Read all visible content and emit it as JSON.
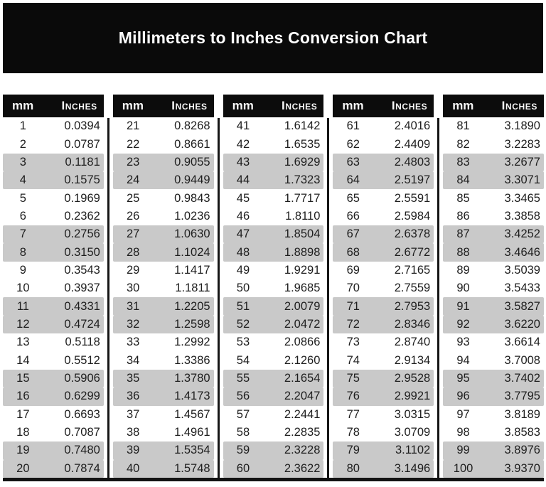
{
  "title": "Millimeters to Inches Conversion Chart",
  "colors": {
    "banner_bg": "#0a0a0a",
    "header_bg": "#0c0c0c",
    "stripe_gray": "#c9c9c9",
    "rule_black": "#151515",
    "body_text": "#1e1e1e",
    "header_text": "#f7f7f7"
  },
  "table": {
    "headers": {
      "mm": "mm",
      "inches": "Inches"
    },
    "groups": [
      {
        "rows": [
          [
            "1",
            "0.0394"
          ],
          [
            "2",
            "0.0787"
          ],
          [
            "3",
            "0.1181"
          ],
          [
            "4",
            "0.1575"
          ],
          [
            "5",
            "0.1969"
          ],
          [
            "6",
            "0.2362"
          ],
          [
            "7",
            "0.2756"
          ],
          [
            "8",
            "0.3150"
          ],
          [
            "9",
            "0.3543"
          ],
          [
            "10",
            "0.3937"
          ],
          [
            "11",
            "0.4331"
          ],
          [
            "12",
            "0.4724"
          ],
          [
            "13",
            "0.5118"
          ],
          [
            "14",
            "0.5512"
          ],
          [
            "15",
            "0.5906"
          ],
          [
            "16",
            "0.6299"
          ],
          [
            "17",
            "0.6693"
          ],
          [
            "18",
            "0.7087"
          ],
          [
            "19",
            "0.7480"
          ],
          [
            "20",
            "0.7874"
          ]
        ]
      },
      {
        "rows": [
          [
            "21",
            "0.8268"
          ],
          [
            "22",
            "0.8661"
          ],
          [
            "23",
            "0.9055"
          ],
          [
            "24",
            "0.9449"
          ],
          [
            "25",
            "0.9843"
          ],
          [
            "26",
            "1.0236"
          ],
          [
            "27",
            "1.0630"
          ],
          [
            "28",
            "1.1024"
          ],
          [
            "29",
            "1.1417"
          ],
          [
            "30",
            "1.1811"
          ],
          [
            "31",
            "1.2205"
          ],
          [
            "32",
            "1.2598"
          ],
          [
            "33",
            "1.2992"
          ],
          [
            "34",
            "1.3386"
          ],
          [
            "35",
            "1.3780"
          ],
          [
            "36",
            "1.4173"
          ],
          [
            "37",
            "1.4567"
          ],
          [
            "38",
            "1.4961"
          ],
          [
            "39",
            "1.5354"
          ],
          [
            "40",
            "1.5748"
          ]
        ]
      },
      {
        "rows": [
          [
            "41",
            "1.6142"
          ],
          [
            "42",
            "1.6535"
          ],
          [
            "43",
            "1.6929"
          ],
          [
            "44",
            "1.7323"
          ],
          [
            "45",
            "1.7717"
          ],
          [
            "46",
            "1.8110"
          ],
          [
            "47",
            "1.8504"
          ],
          [
            "48",
            "1.8898"
          ],
          [
            "49",
            "1.9291"
          ],
          [
            "50",
            "1.9685"
          ],
          [
            "51",
            "2.0079"
          ],
          [
            "52",
            "2.0472"
          ],
          [
            "53",
            "2.0866"
          ],
          [
            "54",
            "2.1260"
          ],
          [
            "55",
            "2.1654"
          ],
          [
            "56",
            "2.2047"
          ],
          [
            "57",
            "2.2441"
          ],
          [
            "58",
            "2.2835"
          ],
          [
            "59",
            "2.3228"
          ],
          [
            "60",
            "2.3622"
          ]
        ]
      },
      {
        "rows": [
          [
            "61",
            "2.4016"
          ],
          [
            "62",
            "2.4409"
          ],
          [
            "63",
            "2.4803"
          ],
          [
            "64",
            "2.5197"
          ],
          [
            "65",
            "2.5591"
          ],
          [
            "66",
            "2.5984"
          ],
          [
            "67",
            "2.6378"
          ],
          [
            "68",
            "2.6772"
          ],
          [
            "69",
            "2.7165"
          ],
          [
            "70",
            "2.7559"
          ],
          [
            "71",
            "2.7953"
          ],
          [
            "72",
            "2.8346"
          ],
          [
            "73",
            "2.8740"
          ],
          [
            "74",
            "2.9134"
          ],
          [
            "75",
            "2.9528"
          ],
          [
            "76",
            "2.9921"
          ],
          [
            "77",
            "3.0315"
          ],
          [
            "78",
            "3.0709"
          ],
          [
            "79",
            "3.1102"
          ],
          [
            "80",
            "3.1496"
          ]
        ]
      },
      {
        "rows": [
          [
            "81",
            "3.1890"
          ],
          [
            "82",
            "3.2283"
          ],
          [
            "83",
            "3.2677"
          ],
          [
            "84",
            "3.3071"
          ],
          [
            "85",
            "3.3465"
          ],
          [
            "86",
            "3.3858"
          ],
          [
            "87",
            "3.4252"
          ],
          [
            "88",
            "3.4646"
          ],
          [
            "89",
            "3.5039"
          ],
          [
            "90",
            "3.5433"
          ],
          [
            "91",
            "3.5827"
          ],
          [
            "92",
            "3.6220"
          ],
          [
            "93",
            "3.6614"
          ],
          [
            "94",
            "3.7008"
          ],
          [
            "95",
            "3.7402"
          ],
          [
            "96",
            "3.7795"
          ],
          [
            "97",
            "3.8189"
          ],
          [
            "98",
            "3.8583"
          ],
          [
            "99",
            "3.8976"
          ],
          [
            "100",
            "3.9370"
          ]
        ]
      }
    ]
  }
}
